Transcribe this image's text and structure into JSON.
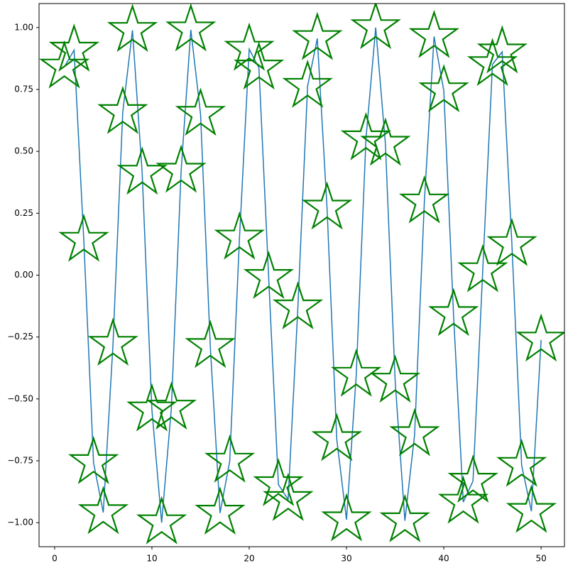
{
  "chart_data": {
    "type": "line",
    "x": [
      1,
      2,
      3,
      4,
      5,
      6,
      7,
      8,
      9,
      10,
      11,
      12,
      13,
      14,
      15,
      16,
      17,
      18,
      19,
      20,
      21,
      22,
      23,
      24,
      25,
      26,
      27,
      28,
      29,
      30,
      31,
      32,
      33,
      34,
      35,
      36,
      37,
      38,
      39,
      40,
      41,
      42,
      43,
      44,
      45,
      46,
      47,
      48,
      49,
      50
    ],
    "series": [
      {
        "color": "#1f77b4",
        "marker_color": "#008000",
        "marker": "star",
        "values": [
          0.841,
          0.909,
          0.141,
          -0.757,
          -0.959,
          -0.279,
          0.657,
          0.989,
          0.412,
          -0.544,
          -1.0,
          -0.537,
          0.42,
          0.991,
          0.65,
          -0.288,
          -0.961,
          -0.751,
          0.15,
          0.913,
          0.837,
          -0.009,
          -0.846,
          -0.906,
          -0.132,
          0.763,
          0.956,
          0.271,
          -0.664,
          -0.988,
          -0.404,
          0.551,
          1.0,
          0.529,
          -0.428,
          -0.992,
          -0.644,
          0.296,
          0.964,
          0.745,
          -0.159,
          -0.917,
          -0.832,
          0.018,
          0.851,
          0.902,
          0.124,
          -0.768,
          -0.954,
          -0.262
        ]
      }
    ],
    "xlim": [
      -1.6,
      52.4
    ],
    "xticks": [
      0,
      10,
      20,
      30,
      40,
      50
    ],
    "ylim": [
      -1.097,
      1.097
    ],
    "yticks": [
      {
        "value": -1,
        "label": "−1.00"
      },
      {
        "value": -0.75,
        "label": "−0.75"
      },
      {
        "value": -0.5,
        "label": "−0.50"
      },
      {
        "value": -0.25,
        "label": "−0.25"
      },
      {
        "value": 0,
        "label": "0.00"
      },
      {
        "value": 0.25,
        "label": "0.25"
      },
      {
        "value": 0.5,
        "label": "0.50"
      },
      {
        "value": 0.75,
        "label": "0.75"
      },
      {
        "value": 1,
        "label": "1.00"
      }
    ]
  }
}
